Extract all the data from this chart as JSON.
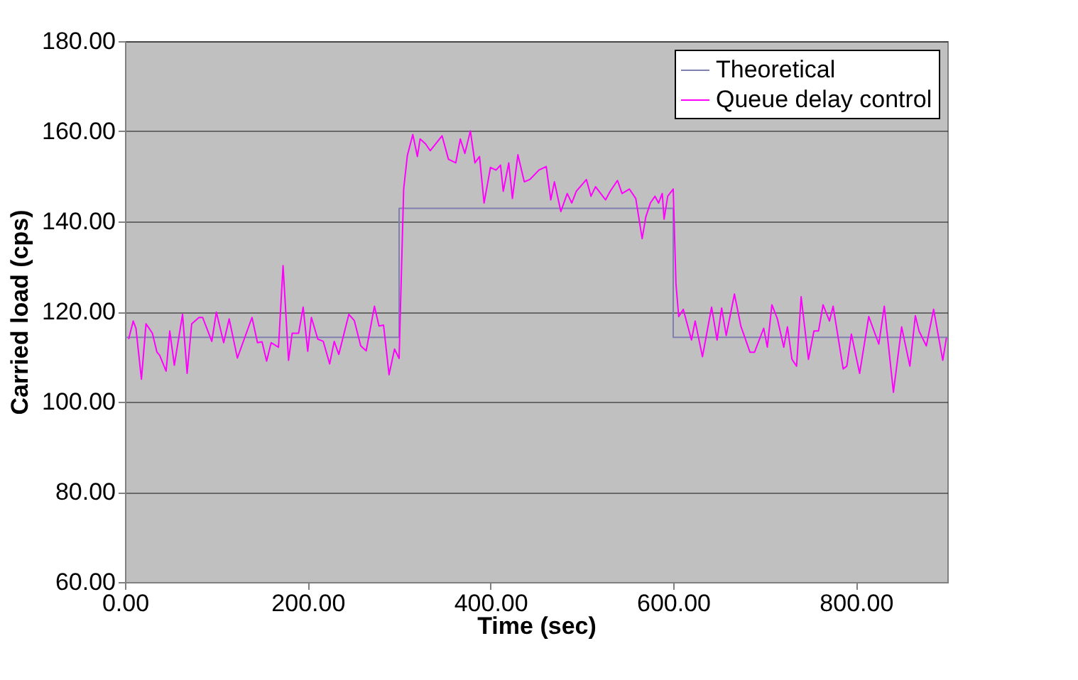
{
  "chart_data": {
    "type": "line",
    "xlabel": "Time (sec)",
    "ylabel": "Carried load (cps)",
    "xlim": [
      0,
      900
    ],
    "xticks": [
      {
        "value": 0,
        "label": "0.00"
      },
      {
        "value": 200,
        "label": "200.00"
      },
      {
        "value": 400,
        "label": "400.00"
      },
      {
        "value": 600,
        "label": "600.00"
      },
      {
        "value": 800,
        "label": "800.00"
      }
    ],
    "ylim": [
      60,
      180
    ],
    "yticks": [
      {
        "value": 60,
        "label": "60.00"
      },
      {
        "value": 80,
        "label": "80.00"
      },
      {
        "value": 100,
        "label": "100.00"
      },
      {
        "value": 120,
        "label": "120.00"
      },
      {
        "value": 140,
        "label": "140.00"
      },
      {
        "value": 160,
        "label": "160.00"
      },
      {
        "value": 180,
        "label": "180.00"
      }
    ],
    "grid": "y",
    "legend": "top right",
    "marker": "none",
    "line_style": "solid",
    "series": [
      {
        "name": "Theoretical",
        "color": "#8080b0",
        "x": [
          0,
          300,
          300,
          600,
          600,
          900
        ],
        "values": [
          114.3,
          114.3,
          142.9,
          142.9,
          114.3,
          114.3
        ]
      },
      {
        "name": "Queue delay control",
        "color": "#ff00ff",
        "x": [
          4,
          9,
          12,
          18,
          23,
          30,
          35,
          38,
          45,
          49,
          54,
          63,
          68,
          73,
          81,
          85,
          95,
          100,
          108,
          114,
          123,
          139,
          145,
          150,
          155,
          160,
          168,
          173,
          179,
          183,
          190,
          195,
          200,
          204,
          211,
          217,
          224,
          229,
          234,
          245,
          251,
          258,
          264,
          273,
          278,
          283,
          289,
          295,
          300,
          305,
          309,
          315,
          320,
          323,
          329,
          334,
          347,
          354,
          362,
          367,
          372,
          378,
          383,
          388,
          393,
          400,
          406,
          411,
          414,
          420,
          424,
          430,
          437,
          443,
          453,
          461,
          466,
          470,
          477,
          484,
          489,
          494,
          505,
          510,
          515,
          526,
          531,
          539,
          544,
          552,
          559,
          566,
          570,
          575,
          580,
          584,
          588,
          590,
          594,
          600,
          603,
          606,
          611,
          620,
          624,
          632,
          642,
          648,
          653,
          658,
          667,
          674,
          684,
          689,
          699,
          703,
          708,
          714,
          721,
          725,
          730,
          735,
          740,
          748,
          754,
          759,
          764,
          771,
          775,
          786,
          790,
          795,
          804,
          814,
          825,
          831,
          841,
          850,
          859,
          865,
          869,
          877,
          885,
          895,
          899
        ],
        "values": [
          113.9,
          117.9,
          116.3,
          105.0,
          117.3,
          115.2,
          111.0,
          110.3,
          106.8,
          115.7,
          108.1,
          119.4,
          106.3,
          117.3,
          118.7,
          118.7,
          113.4,
          119.9,
          113.1,
          118.4,
          109.7,
          118.7,
          113.1,
          113.3,
          109.0,
          113.1,
          112.1,
          130.2,
          109.2,
          115.2,
          115.2,
          121.0,
          111.2,
          118.7,
          113.9,
          113.4,
          108.4,
          113.4,
          110.5,
          119.4,
          118.0,
          112.4,
          111.3,
          121.2,
          116.8,
          117.0,
          106.0,
          111.7,
          109.6,
          147.2,
          154.6,
          159.3,
          154.4,
          158.3,
          157.2,
          155.7,
          159.0,
          153.8,
          153.0,
          158.3,
          155.1,
          160.1,
          153.0,
          154.4,
          144.1,
          152.0,
          151.4,
          152.5,
          146.7,
          153.0,
          145.1,
          154.8,
          148.8,
          149.3,
          151.4,
          152.2,
          144.8,
          148.8,
          142.2,
          146.2,
          144.1,
          146.7,
          149.3,
          145.6,
          147.7,
          144.8,
          146.7,
          149.1,
          146.2,
          147.2,
          145.1,
          136.2,
          141.0,
          144.1,
          145.6,
          144.1,
          146.2,
          140.5,
          145.6,
          147.2,
          126.2,
          118.9,
          120.5,
          113.7,
          117.9,
          110.0,
          121.0,
          113.7,
          120.8,
          114.7,
          123.9,
          116.8,
          111.0,
          111.0,
          116.3,
          112.1,
          121.5,
          118.4,
          112.1,
          116.6,
          109.4,
          107.9,
          123.3,
          109.4,
          115.7,
          115.7,
          121.5,
          117.9,
          121.2,
          107.3,
          107.9,
          115.0,
          106.3,
          118.9,
          112.8,
          121.2,
          102.1,
          116.6,
          107.9,
          119.1,
          115.7,
          112.4,
          120.5,
          109.2,
          114.2
        ]
      }
    ]
  }
}
